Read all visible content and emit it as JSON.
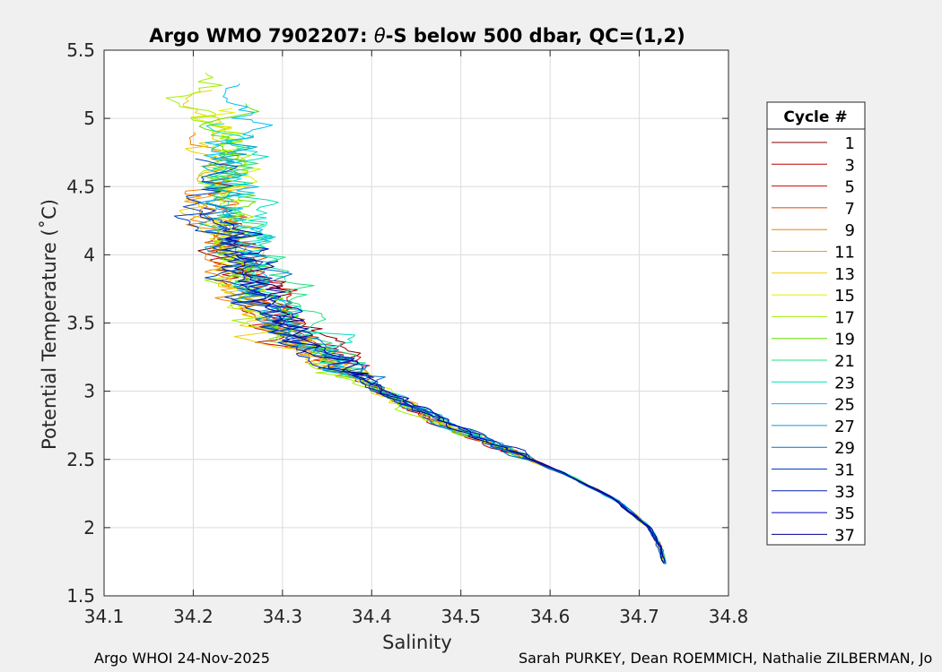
{
  "chart_data": {
    "type": "line",
    "title_prefix": "Argo WMO 7902207: ",
    "title_theta": "θ",
    "title_suffix": "-S below 500 dbar,  QC=(1,2)",
    "xlabel": "Salinity",
    "ylabel": "Potential Temperature (˚C)",
    "xlim": [
      34.1,
      34.8
    ],
    "ylim": [
      1.5,
      5.5
    ],
    "xticks": [
      34.1,
      34.2,
      34.3,
      34.4,
      34.5,
      34.6,
      34.7,
      34.8
    ],
    "xtick_labels": [
      "34.1",
      "34.2",
      "34.3",
      "34.4",
      "34.5",
      "34.6",
      "34.7",
      "34.8"
    ],
    "yticks": [
      1.5,
      2,
      2.5,
      3,
      3.5,
      4,
      4.5,
      5,
      5.5
    ],
    "ytick_labels": [
      "1.5",
      "2",
      "2.5",
      "3",
      "3.5",
      "4",
      "4.5",
      "5",
      "5.5"
    ],
    "grid": true,
    "legend": {
      "title": "Cycle #",
      "placement": "right-outside",
      "entries": [
        "1",
        "3",
        "5",
        "7",
        "9",
        "11",
        "13",
        "15",
        "17",
        "19",
        "21",
        "23",
        "25",
        "27",
        "29",
        "31",
        "33",
        "35",
        "37"
      ],
      "colors": [
        "#800000",
        "#c00000",
        "#e00000",
        "#e04000",
        "#f08000",
        "#f0a000",
        "#f0d000",
        "#e0f000",
        "#a0f000",
        "#60e000",
        "#20e080",
        "#00e0c0",
        "#00c0f0",
        "#00a0d0",
        "#0070d0",
        "#0040c0",
        "#0020b0",
        "#0000c0",
        "#000090"
      ]
    },
    "series_shape": {
      "theta": [
        1.73,
        1.85,
        2.0,
        2.2,
        2.4,
        2.6,
        2.8,
        3.0,
        3.2,
        3.4,
        3.6,
        3.8,
        4.0,
        4.2,
        4.4
      ],
      "salinity_centerline": [
        34.729,
        34.724,
        34.711,
        34.675,
        34.615,
        34.54,
        34.47,
        34.41,
        34.36,
        34.315,
        34.285,
        34.265,
        34.25,
        34.24,
        34.235
      ]
    }
  },
  "footer": {
    "left": "Argo WHOI 24-Nov-2025",
    "right": "Sarah PURKEY, Dean ROEMMICH, Nathalie ZILBERMAN, Jo"
  }
}
